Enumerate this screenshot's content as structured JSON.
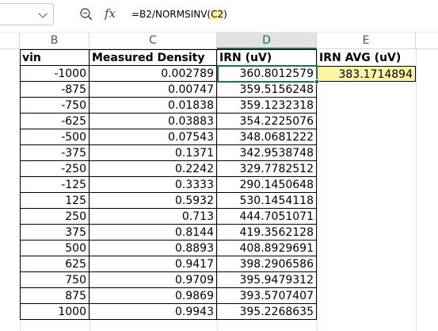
{
  "formula_bar": {
    "name_box": "",
    "formula_prefix": "=B2/NORMSINV(",
    "formula_ref": "C2",
    "formula_suffix": ")"
  },
  "columns": [
    "B",
    "C",
    "D",
    "E"
  ],
  "active_column": "D",
  "table": {
    "headers": [
      "vin",
      "Measured Density",
      "IRN (uV)"
    ],
    "rows": [
      [
        "-1000",
        "0.002789",
        "360.8012579"
      ],
      [
        "-875",
        "0.00747",
        "359.5156248"
      ],
      [
        "-750",
        "0.01838",
        "359.1232318"
      ],
      [
        "-625",
        "0.03883",
        "354.2225076"
      ],
      [
        "-500",
        "0.07543",
        "348.0681222"
      ],
      [
        "-375",
        "0.1371",
        "342.9538748"
      ],
      [
        "-250",
        "0.2242",
        "329.7782512"
      ],
      [
        "-125",
        "0.3333",
        "290.1450648"
      ],
      [
        "125",
        "0.5932",
        "530.1454118"
      ],
      [
        "250",
        "0.713",
        "444.7051071"
      ],
      [
        "375",
        "0.8144",
        "419.3562128"
      ],
      [
        "500",
        "0.8893",
        "408.8929691"
      ],
      [
        "625",
        "0.9417",
        "398.2906586"
      ],
      [
        "750",
        "0.9709",
        "395.9479312"
      ],
      [
        "875",
        "0.9869",
        "393.5707407"
      ],
      [
        "1000",
        "0.9943",
        "395.2268635"
      ]
    ]
  },
  "irn_avg": {
    "header": "IRN AVG (uV)",
    "value": "383.1714894"
  },
  "colors": {
    "accent": "#217346",
    "highlight": "#fdf5a6"
  },
  "icons": [
    "chevron-down-icon",
    "zoom-icon",
    "fx-icon"
  ]
}
